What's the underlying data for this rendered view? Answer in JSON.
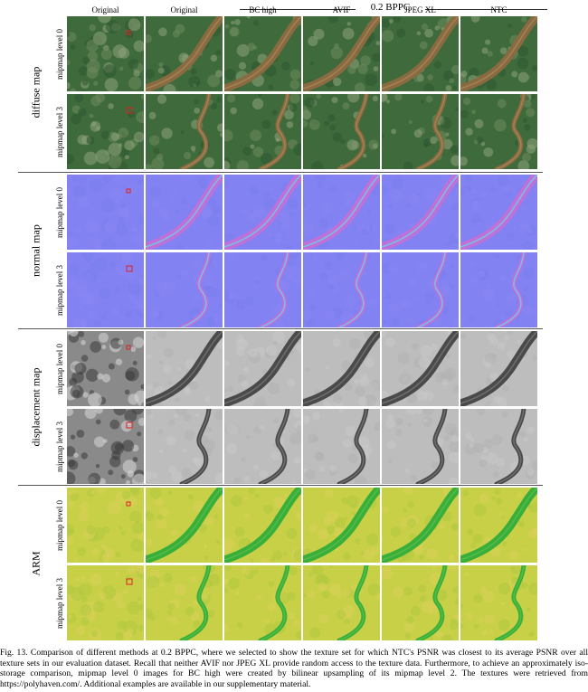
{
  "header": {
    "group_label": "0.2 BPPC",
    "columns": [
      "Original",
      "Original",
      "BC high",
      "AVIF",
      "JPEG XL",
      "NTC"
    ]
  },
  "groups": [
    {
      "label": "diffuse map",
      "rows": [
        "mipmap level 0",
        "mipmap level 3"
      ]
    },
    {
      "label": "normal map",
      "rows": [
        "mipmap level 0",
        "mipmap level 3"
      ]
    },
    {
      "label": "displacement map",
      "rows": [
        "mipmap level 0",
        "mipmap level 3"
      ]
    },
    {
      "label": "ARM",
      "rows": [
        "mipmap level 0",
        "mipmap level 3"
      ]
    }
  ],
  "caption": "Fig. 13.  Comparison of different methods at 0.2 BPPC, where we selected to show the texture set for which NTC's PSNR was closest to its average PSNR over all texture sets in our evaluation dataset. Recall that neither AVIF nor JPEG XL provide random access to the texture data. Furthermore, to achieve an approximately iso-storage comparison, mipmap level 0 images for BC high were created by bilinear upsampling of its mipmap level 2. The textures were retrieved from https://polyhaven.com/. Additional examples are available in our supplementary material."
}
